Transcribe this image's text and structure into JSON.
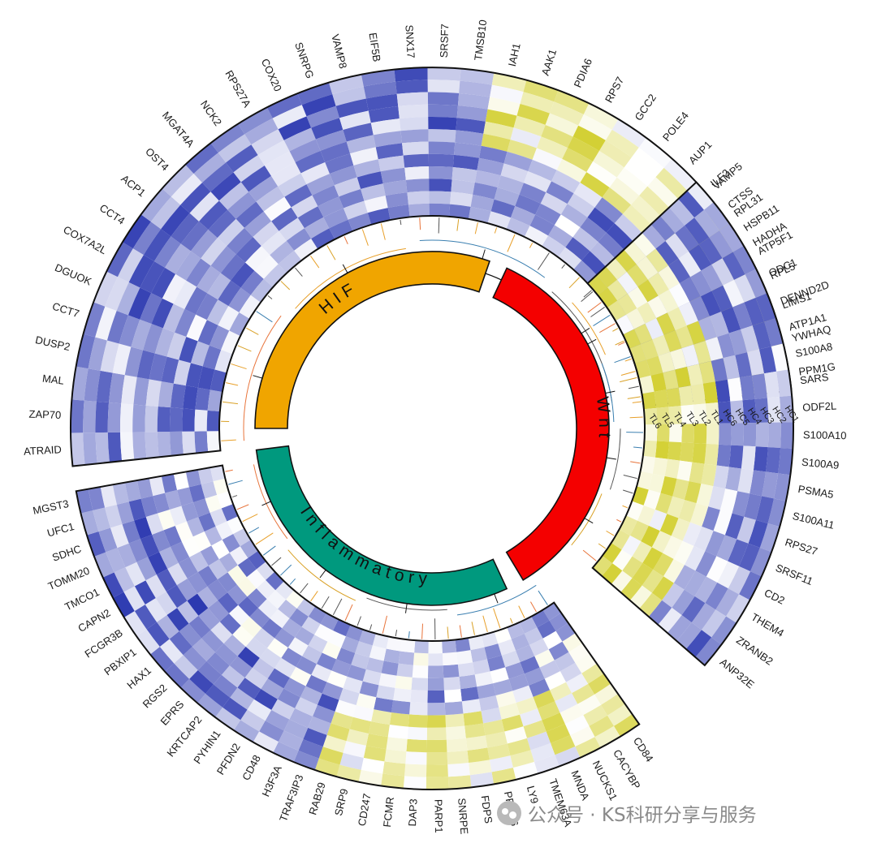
{
  "chart_data": {
    "type": "heatmap",
    "layout": "circular",
    "samples": [
      "HC1",
      "HC2",
      "HC3",
      "HC4",
      "HC5",
      "HC6",
      "TL1",
      "TL2",
      "TL3",
      "TL4",
      "TL5",
      "TL6"
    ],
    "color_scale": {
      "low": "#2b38b0",
      "mid": "#ffffff",
      "high": "#c8c400"
    },
    "clusters": [
      {
        "name": "HIF",
        "color": "#f0a500",
        "genes": [
          "ATRAID",
          "ZAP70",
          "MAL",
          "DUSP2",
          "CCT7",
          "DGUOK",
          "COX7A2L",
          "CCT4",
          "ACP1",
          "OST4",
          "MGAT4A",
          "NCK2",
          "RPS27A",
          "COX20",
          "SNRPG",
          "VAMP8",
          "EIF5B",
          "SNX17",
          "SRSF7",
          "TMSB10",
          "IAH1",
          "AAK1",
          "PDIA6",
          "RPS7",
          "GCC2",
          "POLE4",
          "AUP1",
          "VAMP5",
          "RPL31",
          "HADHA",
          "ODC1",
          "LIMS1",
          "YWHAQ",
          "PPM1G"
        ]
      },
      {
        "name": "Wnt",
        "color": "#f40000",
        "genes": [
          "ILF2",
          "CTSS",
          "HSPB11",
          "ATP5F1",
          "RPL5",
          "DENND2D",
          "ATP1A1",
          "S100A8",
          "SARS",
          "ODF2L",
          "S100A10",
          "S100A9",
          "PSMA5",
          "S100A11",
          "RPS27",
          "SRSF11",
          "CD2",
          "THEM4",
          "ZRANB2",
          "ANP32E"
        ]
      },
      {
        "name": "Inflammatory",
        "color": "#00997e",
        "genes": [
          "CD84",
          "CACYBP",
          "NUCKS1",
          "MNDA",
          "TMEM63A",
          "LY9",
          "PRDX6",
          "FDPS",
          "SNRPE",
          "PARP1",
          "DAP3",
          "FCMR",
          "CD247",
          "SRP9",
          "RAB29",
          "TRAF3IP3",
          "H3F3A",
          "CD48",
          "PFDN2",
          "PYHIN1",
          "KRTCAP2",
          "EPRS",
          "RGS2",
          "HAX1",
          "PBXIP1",
          "FCGR3B",
          "CAPN2",
          "TMCO1",
          "TOMM20",
          "SDHC",
          "UFC1",
          "MGST3"
        ]
      }
    ]
  },
  "watermark": {
    "text": "公众号 · KS科研分享与服务"
  }
}
